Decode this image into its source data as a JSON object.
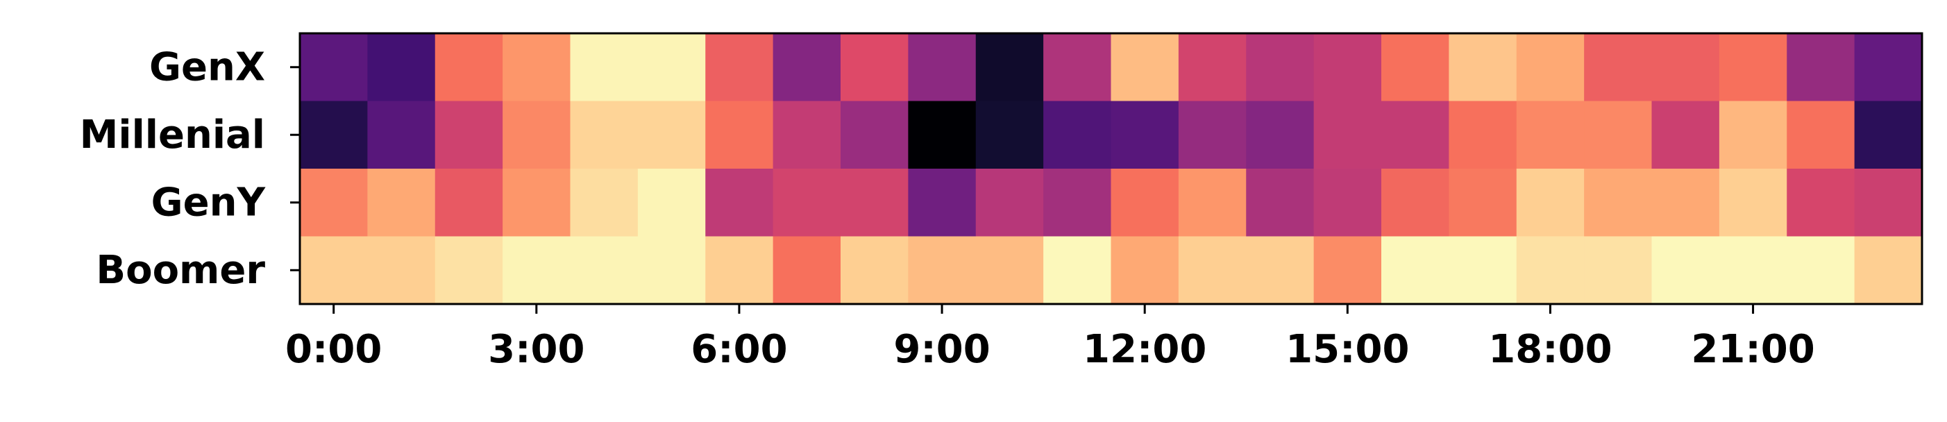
{
  "chart_data": {
    "type": "heatmap",
    "title": "",
    "xlabel": "",
    "ylabel": "",
    "colormap": "magma",
    "grid": false,
    "colorbar": false,
    "rows": [
      "GenX",
      "Millenial",
      "GenY",
      "Boomer"
    ],
    "columns": [
      "0:00",
      "1:00",
      "2:00",
      "3:00",
      "4:00",
      "5:00",
      "6:00",
      "7:00",
      "8:00",
      "9:00",
      "10:00",
      "11:00",
      "12:00",
      "13:00",
      "14:00",
      "15:00",
      "16:00",
      "17:00",
      "18:00",
      "19:00",
      "20:00",
      "21:00",
      "22:00",
      "23:00"
    ],
    "x_tick_labels": [
      "0:00",
      "3:00",
      "6:00",
      "9:00",
      "12:00",
      "15:00",
      "18:00",
      "21:00"
    ],
    "values": [
      [
        0.28,
        0.22,
        0.7,
        0.78,
        0.98,
        0.98,
        0.66,
        0.38,
        0.6,
        0.4,
        0.08,
        0.48,
        0.86,
        0.57,
        0.5,
        0.53,
        0.7,
        0.88,
        0.82,
        0.66,
        0.66,
        0.7,
        0.42,
        0.3
      ],
      [
        0.14,
        0.27,
        0.56,
        0.75,
        0.91,
        0.91,
        0.7,
        0.53,
        0.43,
        0.0,
        0.09,
        0.25,
        0.27,
        0.42,
        0.38,
        0.53,
        0.53,
        0.7,
        0.75,
        0.75,
        0.55,
        0.85,
        0.7,
        0.16
      ],
      [
        0.74,
        0.82,
        0.64,
        0.78,
        0.93,
        0.98,
        0.52,
        0.57,
        0.57,
        0.33,
        0.5,
        0.45,
        0.7,
        0.78,
        0.47,
        0.52,
        0.68,
        0.72,
        0.9,
        0.82,
        0.82,
        0.9,
        0.58,
        0.55
      ],
      [
        0.9,
        0.9,
        0.94,
        0.98,
        0.98,
        0.98,
        0.9,
        0.7,
        0.9,
        0.86,
        0.86,
        0.99,
        0.82,
        0.9,
        0.9,
        0.76,
        0.99,
        0.99,
        0.94,
        0.94,
        0.99,
        0.99,
        0.99,
        0.9
      ]
    ]
  }
}
